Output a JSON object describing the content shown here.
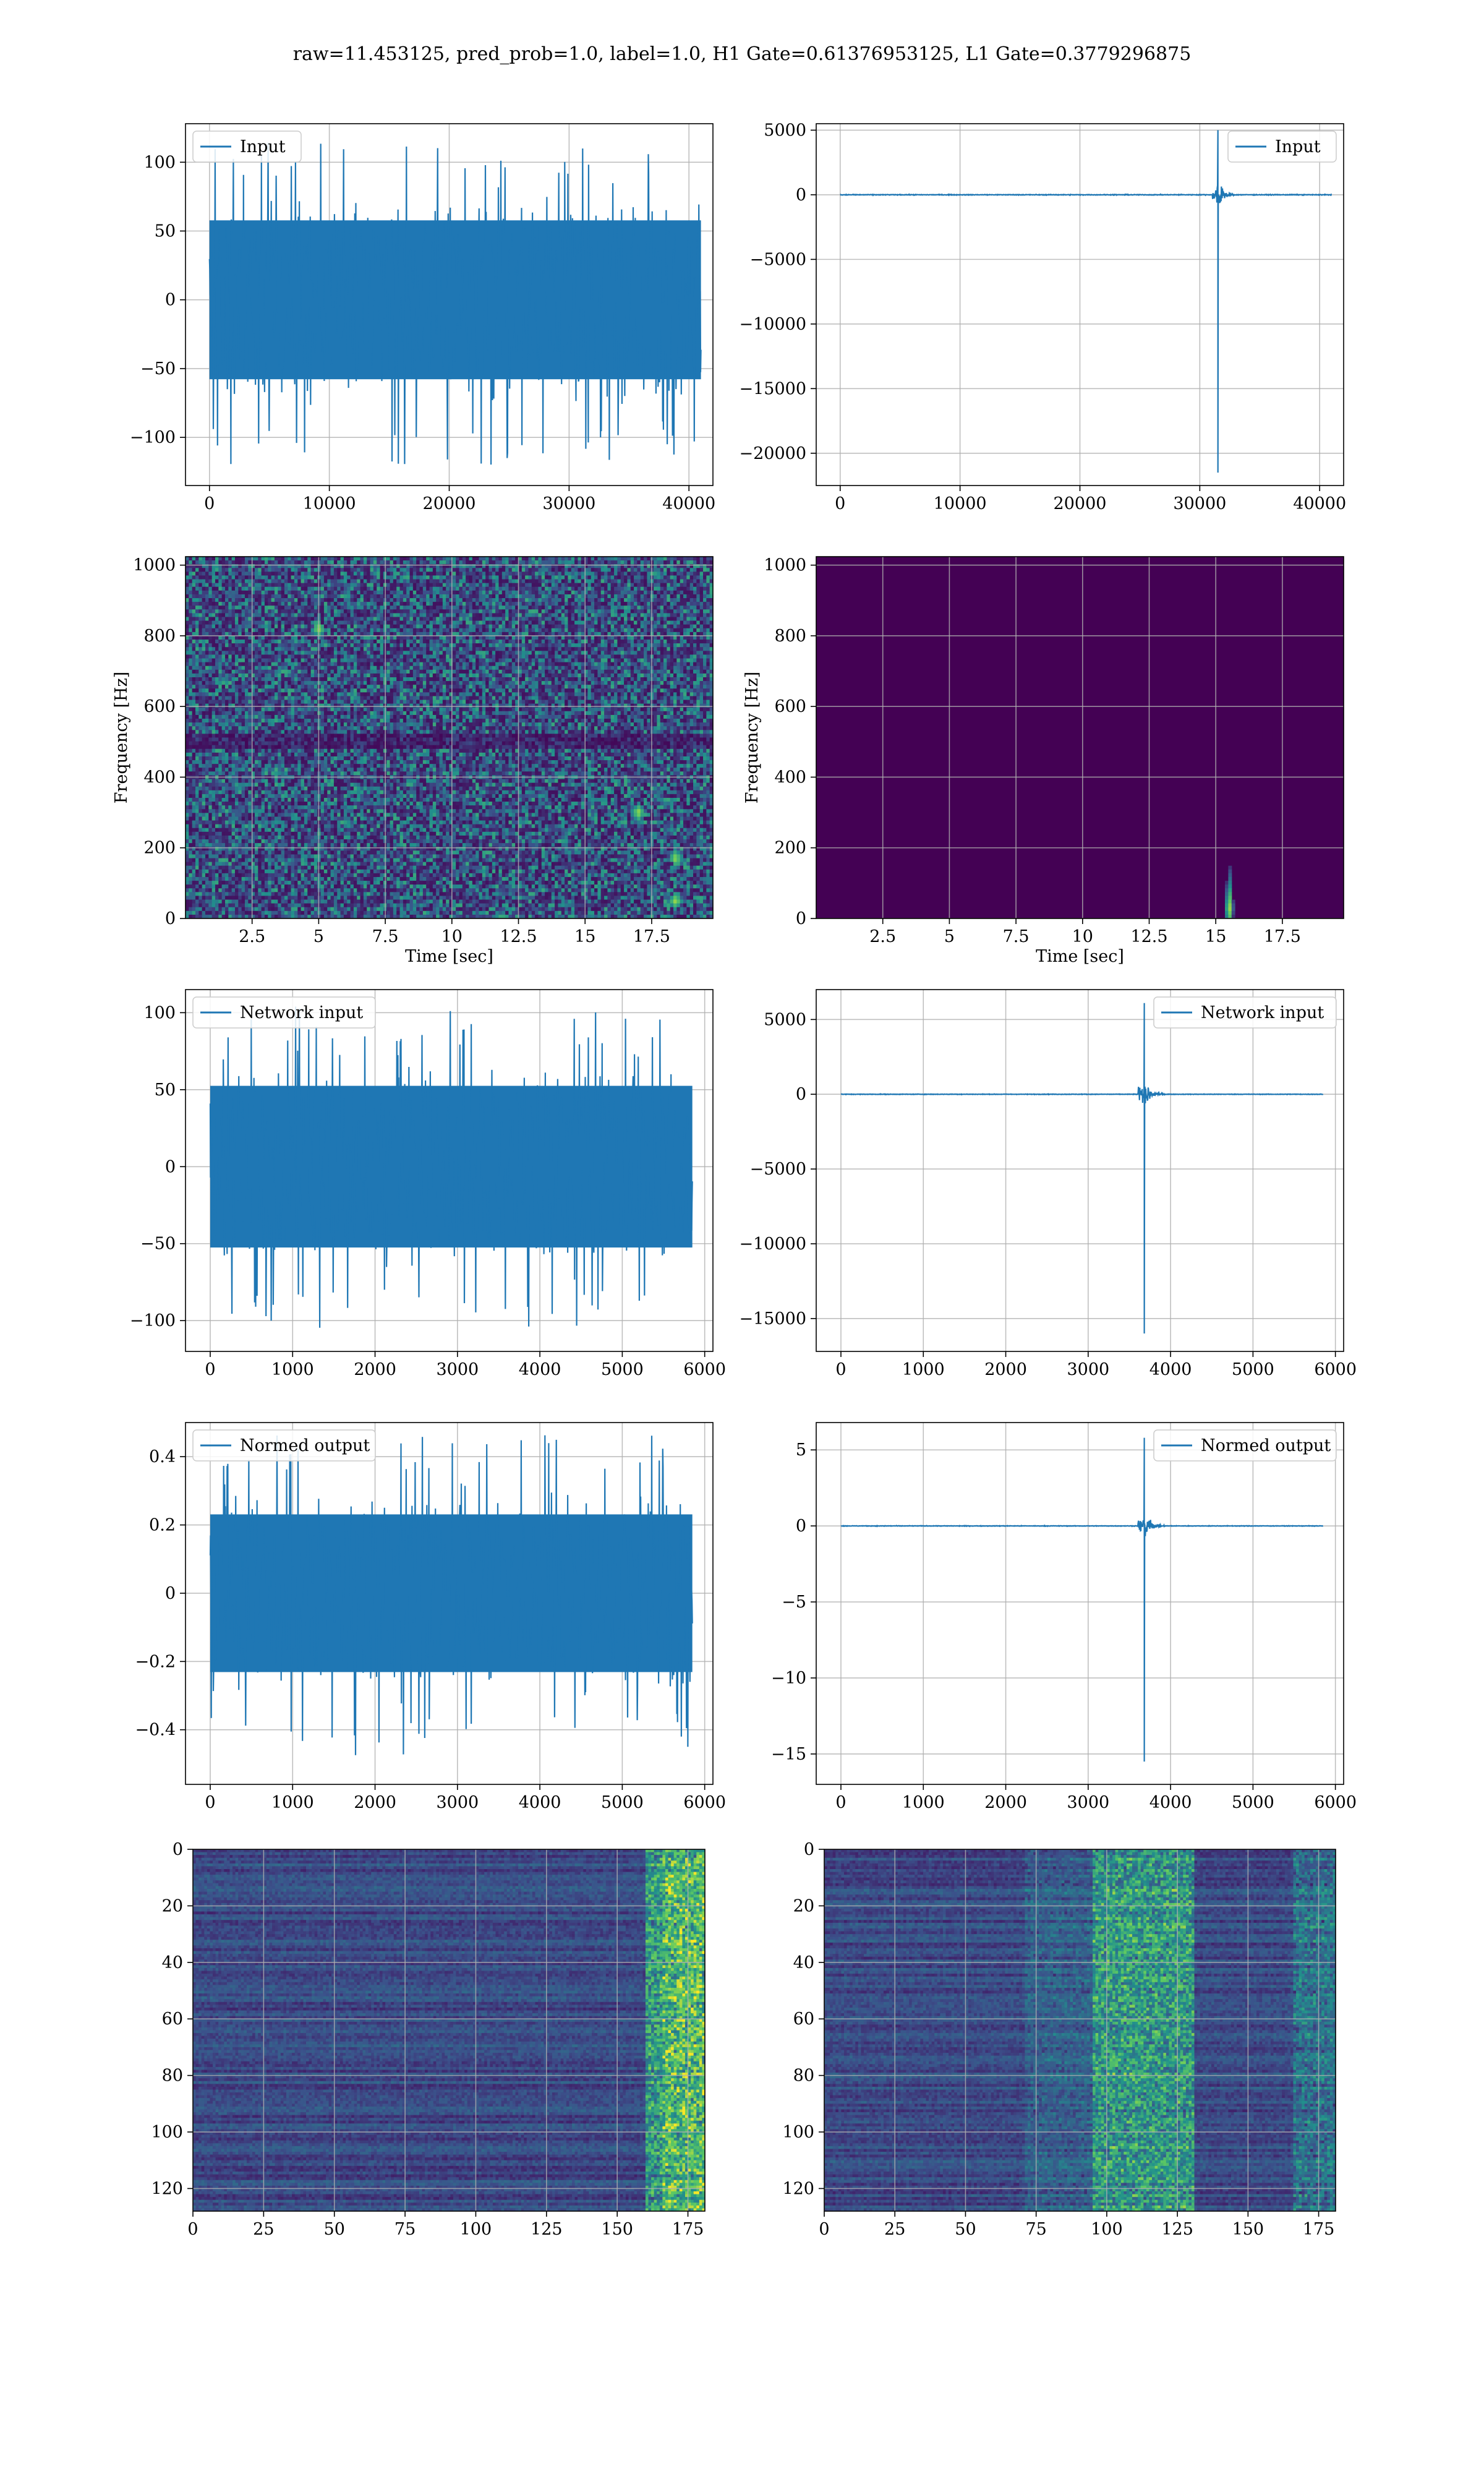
{
  "figure_title": "raw=11.453125, pred_prob=1.0, label=1.0, H1 Gate=0.61376953125, L1 Gate=0.3779296875",
  "colors": {
    "series": "#1f77b4",
    "grid": "#b0b0b0",
    "viridis_dark": "#440154",
    "viridis_mid": "#21918c",
    "viridis_bright": "#fde725"
  },
  "chart_data": [
    {
      "type": "line",
      "legend": "Input",
      "legend_position": "top-left",
      "xlim": [
        -2000,
        42000
      ],
      "ylim": [
        -135,
        128
      ],
      "xticks": [
        0,
        10000,
        20000,
        30000,
        40000
      ],
      "yticks": [
        -100,
        -50,
        0,
        50,
        100
      ],
      "x_range": [
        0,
        41000
      ],
      "noise_amplitude": 55,
      "noise_peak": 120,
      "grid": true
    },
    {
      "type": "line",
      "legend": "Input",
      "legend_position": "top-right",
      "xlim": [
        -2000,
        42000
      ],
      "ylim": [
        -22500,
        5500
      ],
      "xticks": [
        0,
        10000,
        20000,
        30000,
        40000
      ],
      "yticks": [
        -20000,
        -15000,
        -10000,
        -5000,
        0,
        5000
      ],
      "x_range": [
        0,
        41000
      ],
      "noise_amplitude": 60,
      "event": {
        "x": 31500,
        "min": -21500,
        "max": 5000,
        "ringdown": 1500
      },
      "grid": true
    },
    {
      "type": "heatmap",
      "xlabel": "Time [sec]",
      "ylabel": "Frequency [Hz]",
      "xlim": [
        0,
        19.8
      ],
      "ylim": [
        0,
        1024
      ],
      "xticks": [
        2.5,
        5.0,
        7.5,
        10.0,
        12.5,
        15.0,
        17.5
      ],
      "yticks": [
        0,
        200,
        400,
        600,
        800,
        1000
      ],
      "colormap": "viridis",
      "description_level": "noisy broadband",
      "hot_spots": [
        [
          18.4,
          170
        ],
        [
          18.4,
          50
        ],
        [
          17.0,
          300
        ],
        [
          5.0,
          820
        ]
      ],
      "grid": true
    },
    {
      "type": "heatmap",
      "xlabel": "Time [sec]",
      "ylabel": "Frequency [Hz]",
      "xlim": [
        0,
        19.8
      ],
      "ylim": [
        0,
        1024
      ],
      "xticks": [
        2.5,
        5.0,
        7.5,
        10.0,
        12.5,
        15.0,
        17.5
      ],
      "yticks": [
        0,
        200,
        400,
        600,
        800,
        1000
      ],
      "colormap": "viridis",
      "hot_spots": [
        [
          15.5,
          30
        ]
      ],
      "grid": true
    },
    {
      "type": "line",
      "legend": "Network input",
      "legend_position": "top-left",
      "xlim": [
        -300,
        6100
      ],
      "ylim": [
        -120,
        115
      ],
      "xticks": [
        0,
        1000,
        2000,
        3000,
        4000,
        5000,
        6000
      ],
      "yticks": [
        -100,
        -50,
        0,
        50,
        100
      ],
      "x_range": [
        0,
        5850
      ],
      "noise_amplitude": 50,
      "noise_peak": 105,
      "grid": true
    },
    {
      "type": "line",
      "legend": "Network input",
      "legend_position": "top-right",
      "xlim": [
        -300,
        6100
      ],
      "ylim": [
        -17200,
        7000
      ],
      "xticks": [
        0,
        1000,
        2000,
        3000,
        4000,
        5000,
        6000
      ],
      "yticks": [
        -15000,
        -10000,
        -5000,
        0,
        5000
      ],
      "x_range": [
        0,
        5850
      ],
      "noise_amplitude": 40,
      "event": {
        "x": 3680,
        "min": -16000,
        "max": 6100,
        "ringdown": 250
      },
      "grid": true
    },
    {
      "type": "line",
      "legend": "Normed output",
      "legend_position": "top-left",
      "xlim": [
        -300,
        6100
      ],
      "ylim": [
        -0.56,
        0.5
      ],
      "xticks": [
        0,
        1000,
        2000,
        3000,
        4000,
        5000,
        6000
      ],
      "yticks": [
        -0.4,
        -0.2,
        0.0,
        0.2,
        0.4
      ],
      "x_range": [
        0,
        5850
      ],
      "noise_amplitude": 0.22,
      "noise_peak": 0.48,
      "grid": true
    },
    {
      "type": "line",
      "legend": "Normed output",
      "legend_position": "top-right",
      "xlim": [
        -300,
        6100
      ],
      "ylim": [
        -17,
        6.8
      ],
      "xticks": [
        0,
        1000,
        2000,
        3000,
        4000,
        5000,
        6000
      ],
      "yticks": [
        -15,
        -10,
        -5,
        0,
        5
      ],
      "x_range": [
        0,
        5850
      ],
      "noise_amplitude": 0.04,
      "event": {
        "x": 3680,
        "min": -15.5,
        "max": 5.8,
        "ringdown": 250
      },
      "grid": true
    },
    {
      "type": "heatmap",
      "xlim": [
        0,
        181
      ],
      "ylim": [
        128,
        0
      ],
      "xticks": [
        0,
        25,
        50,
        75,
        100,
        125,
        150,
        175
      ],
      "yticks": [
        0,
        20,
        40,
        60,
        80,
        100,
        120
      ],
      "colormap": "viridis",
      "bright_band": [
        160,
        181
      ],
      "grid": true
    },
    {
      "type": "heatmap",
      "xlim": [
        0,
        181
      ],
      "ylim": [
        128,
        0
      ],
      "xticks": [
        0,
        25,
        50,
        75,
        100,
        125,
        150,
        175
      ],
      "yticks": [
        0,
        20,
        40,
        60,
        80,
        100,
        120
      ],
      "colormap": "viridis",
      "bright_band": [
        95,
        130
      ],
      "grid": true
    }
  ]
}
